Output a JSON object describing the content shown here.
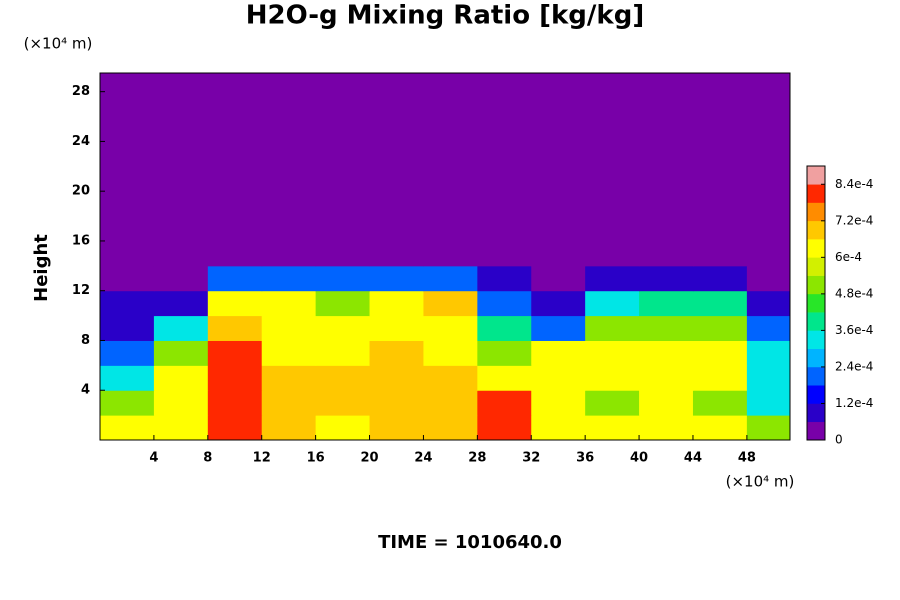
{
  "chart_data": {
    "type": "heatmap",
    "title": "H2O-g Mixing Ratio [kg/kg]",
    "y_label": "Height",
    "y_unit": "(×10⁴ m)",
    "x_unit": "(×10⁴ m)",
    "footer": "TIME = 1010640.0",
    "xlim": [
      0,
      51.2
    ],
    "ylim": [
      0,
      29.5
    ],
    "xticks": [
      4,
      8,
      12,
      16,
      20,
      24,
      28,
      32,
      36,
      40,
      44,
      48
    ],
    "yticks": [
      4,
      8,
      12,
      16,
      20,
      24,
      28
    ],
    "xbins": [
      0,
      4,
      8,
      12,
      16,
      20,
      24,
      28,
      32,
      36,
      40,
      44,
      48,
      51.2
    ],
    "ybins": [
      0,
      2,
      4,
      6,
      8,
      10,
      12,
      14,
      29.5
    ],
    "z": [
      [
        0.0006,
        0.0006,
        0.0008,
        0.0007,
        0.0006,
        0.0007,
        0.0007,
        0.0008,
        0.0006,
        0.0006,
        0.0006,
        0.0006,
        0.0005
      ],
      [
        0.0005,
        0.0006,
        0.0008,
        0.0007,
        0.0007,
        0.0007,
        0.0007,
        0.0008,
        0.0006,
        0.0005,
        0.0006,
        0.0005,
        0.0003
      ],
      [
        0.0003,
        0.0006,
        0.0008,
        0.0007,
        0.0007,
        0.0007,
        0.0007,
        0.0006,
        0.0006,
        0.0006,
        0.0006,
        0.0006,
        0.0003
      ],
      [
        0.0002,
        0.0005,
        0.0008,
        0.0006,
        0.0006,
        0.0007,
        0.0006,
        0.0005,
        0.0006,
        0.0006,
        0.0006,
        0.0006,
        0.0003
      ],
      [
        0.0001,
        0.0003,
        0.0007,
        0.0006,
        0.0006,
        0.0006,
        0.0006,
        0.0004,
        0.0002,
        0.0005,
        0.0005,
        0.0005,
        0.0002
      ],
      [
        0.0001,
        0.0001,
        0.0006,
        0.0006,
        0.0005,
        0.0006,
        0.0007,
        0.0002,
        0.0001,
        0.0003,
        0.0004,
        0.0004,
        0.0001
      ],
      [
        5e-05,
        5e-05,
        0.0002,
        0.0002,
        0.0002,
        0.0002,
        0.0002,
        0.0001,
        5e-05,
        0.0001,
        0.0001,
        0.0001,
        5e-05
      ],
      [
        0,
        0,
        0,
        0,
        0,
        0,
        0,
        0,
        0,
        0,
        0,
        0,
        0
      ]
    ],
    "clim": [
      0,
      0.0009
    ],
    "colormap": [
      "#7800a8",
      "#2a00c8",
      "#0000ff",
      "#0064ff",
      "#00b4ff",
      "#00e6e6",
      "#00e68c",
      "#28e628",
      "#8ce600",
      "#d2f000",
      "#ffff00",
      "#ffc800",
      "#ff8c00",
      "#ff2800",
      "#f0a0a0"
    ],
    "cticks": [
      0,
      {
        "value": 0.00012,
        "label": "1.2e-4"
      },
      {
        "value": 0.00024,
        "label": "2.4e-4"
      },
      {
        "value": 0.00036,
        "label": "3.6e-4"
      },
      {
        "value": 0.00048,
        "label": "4.8e-4"
      },
      {
        "value": 0.0006,
        "label": "6e-4"
      },
      {
        "value": 0.00072,
        "label": "7.2e-4"
      },
      {
        "value": 0.00084,
        "label": "8.4e-4"
      }
    ]
  }
}
